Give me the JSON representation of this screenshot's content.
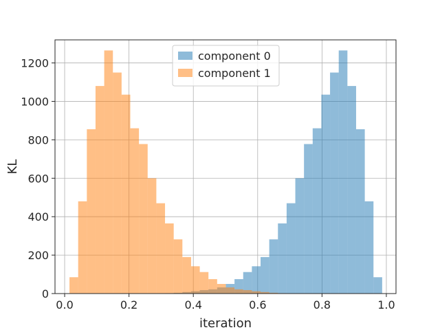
{
  "chart_data": {
    "type": "histogram",
    "title": "",
    "xlabel": "iteration",
    "ylabel": "KL",
    "xlim": [
      -0.03,
      1.03
    ],
    "ylim": [
      0,
      1320
    ],
    "xticks": [
      0.0,
      0.2,
      0.4,
      0.6,
      0.8,
      1.0
    ],
    "xtick_labels": [
      "0.0",
      "0.2",
      "0.4",
      "0.6",
      "0.8",
      "1.0"
    ],
    "yticks": [
      0,
      200,
      400,
      600,
      800,
      1000,
      1200
    ],
    "ytick_labels": [
      "0",
      "200",
      "400",
      "600",
      "800",
      "1000",
      "1200"
    ],
    "grid": true,
    "legend_position": "top-center",
    "series": [
      {
        "name": "component 0",
        "color": "#1f77b4",
        "alpha": 0.5,
        "bin_edges": [
          0.015,
          0.042,
          0.069,
          0.096,
          0.123,
          0.15,
          0.177,
          0.204,
          0.231,
          0.258,
          0.285,
          0.312,
          0.339,
          0.366,
          0.393,
          0.42,
          0.447,
          0.474,
          0.501,
          0.528,
          0.555,
          0.582,
          0.609,
          0.636,
          0.663,
          0.69,
          0.717,
          0.744,
          0.771,
          0.798,
          0.825,
          0.852,
          0.879,
          0.906,
          0.933,
          0.96,
          0.987
        ],
        "counts": [
          0,
          0,
          0,
          0,
          0,
          0,
          0,
          0,
          0,
          0,
          0,
          2,
          4,
          8,
          12,
          18,
          22,
          32,
          50,
          75,
          112,
          142,
          190,
          282,
          365,
          470,
          600,
          778,
          860,
          1035,
          1150,
          1265,
          1080,
          855,
          480,
          85
        ]
      },
      {
        "name": "component 1",
        "color": "#ff7f0e",
        "alpha": 0.5,
        "bin_edges": [
          0.015,
          0.042,
          0.069,
          0.096,
          0.123,
          0.15,
          0.177,
          0.204,
          0.231,
          0.258,
          0.285,
          0.312,
          0.339,
          0.366,
          0.393,
          0.42,
          0.447,
          0.474,
          0.501,
          0.528,
          0.555,
          0.582,
          0.609,
          0.636,
          0.663,
          0.69,
          0.717,
          0.744,
          0.771,
          0.798,
          0.825,
          0.852,
          0.879,
          0.906,
          0.933,
          0.96,
          0.987
        ],
        "counts": [
          85,
          480,
          855,
          1080,
          1265,
          1150,
          1035,
          860,
          778,
          600,
          470,
          365,
          282,
          190,
          142,
          112,
          75,
          50,
          32,
          22,
          18,
          12,
          8,
          4,
          2,
          0,
          0,
          0,
          0,
          0,
          0,
          0,
          0,
          0,
          0,
          0
        ]
      }
    ]
  }
}
